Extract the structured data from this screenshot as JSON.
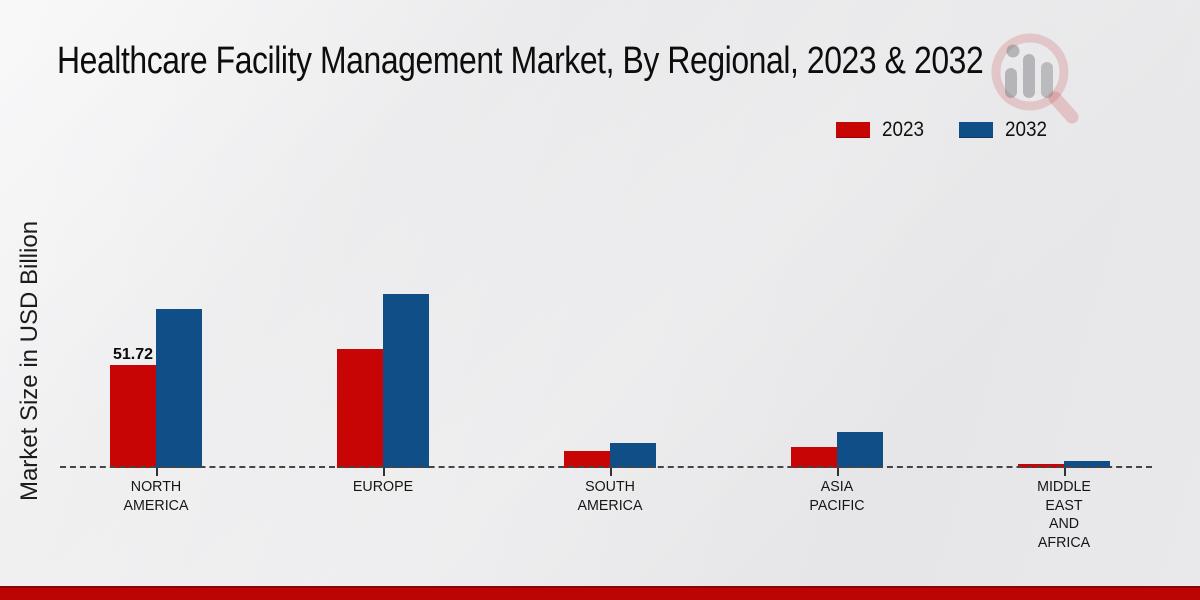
{
  "title": "Healthcare Facility Management Market, By Regional, 2023 & 2032",
  "y_axis_label": "Market Size in USD Billion",
  "colors": {
    "series_2023": "#c70504",
    "series_2032": "#0f4e87",
    "footer_band": "#bb0504",
    "baseline": "#454545",
    "background": "#e9e9eb"
  },
  "legend": {
    "position": "top-right",
    "items": [
      {
        "label": "2023",
        "color": "#c70504"
      },
      {
        "label": "2032",
        "color": "#0f4e87"
      }
    ]
  },
  "watermark_icon": "magnifier-bar-chart-logo",
  "chart_data": {
    "type": "bar",
    "title": "Healthcare Facility Management Market, By Regional, 2023 & 2032",
    "xlabel": "",
    "ylabel": "Market Size in USD Billion",
    "axis_style": "dashed zero baseline, no y-axis ticks, no gridlines",
    "ylim": [
      0,
      100
    ],
    "categories": [
      "NORTH AMERICA",
      "EUROPE",
      "SOUTH AMERICA",
      "ASIA PACIFIC",
      "MIDDLE EAST AND AFRICA"
    ],
    "category_label_lines": [
      [
        "NORTH",
        "AMERICA"
      ],
      [
        "EUROPE"
      ],
      [
        "SOUTH",
        "AMERICA"
      ],
      [
        "ASIA",
        "PACIFIC"
      ],
      [
        "MIDDLE",
        "EAST",
        "AND",
        "AFRICA"
      ]
    ],
    "series": [
      {
        "name": "2023",
        "color": "#c70504",
        "values": [
          51.72,
          59.6,
          8.4,
          10.5,
          2.0
        ]
      },
      {
        "name": "2032",
        "color": "#0f4e87",
        "values": [
          79.6,
          87.0,
          12.4,
          18.2,
          3.3
        ]
      }
    ],
    "data_labels": [
      {
        "series": "2023",
        "category": "NORTH AMERICA",
        "text": "51.72"
      }
    ],
    "legend_position": "top-right"
  }
}
